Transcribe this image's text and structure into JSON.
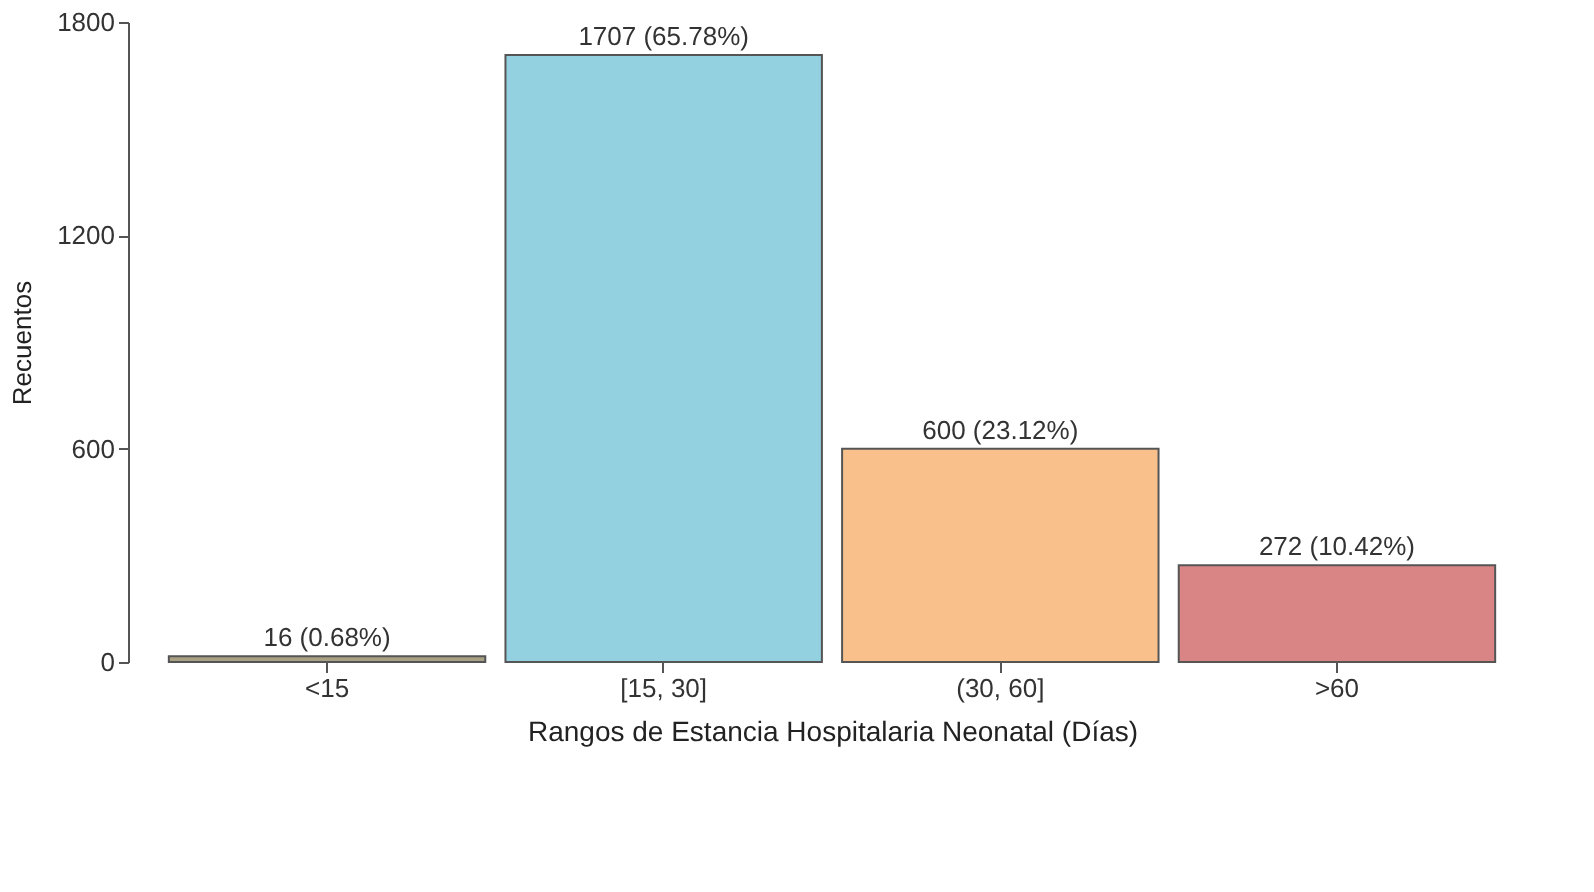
{
  "chart_data": {
    "type": "bar",
    "xlabel": "Rangos de Estancia Hospitalaria Neonatal (Días)",
    "ylabel": "Recuentos",
    "categories": [
      "<15",
      "[15, 30]",
      "(30, 60]",
      ">60"
    ],
    "values": [
      16,
      1707,
      600,
      272
    ],
    "colors": [
      "#a9a184",
      "#93d0e0",
      "#f9c08c",
      "#da8585"
    ],
    "value_labels": [
      "16 (0.68%)",
      "1707 (65.78%)",
      "600 (23.12%)",
      "272 (10.42%)"
    ],
    "ylim": [
      0,
      1800
    ],
    "yticks": [
      0,
      600,
      1200,
      1800
    ],
    "grid": false
  }
}
